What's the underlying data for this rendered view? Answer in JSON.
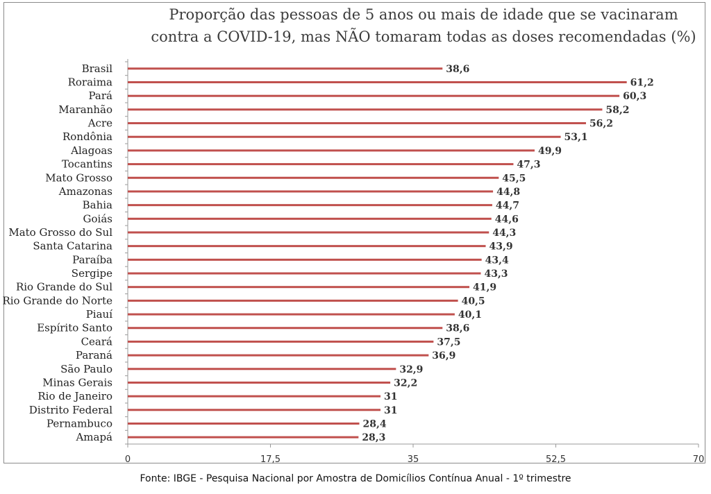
{
  "chart_data": {
    "type": "bar",
    "orientation": "horizontal",
    "title_lines": [
      "Proporção das pessoas de 5 anos ou mais de idade que se vacinaram",
      "contra a COVID-19, mas NÃO tomaram todas as doses recomendadas (%)"
    ],
    "categories": [
      "Brasil",
      "Roraima",
      "Pará",
      "Maranhão",
      "Acre",
      "Rondônia",
      "Alagoas",
      "Tocantins",
      "Mato Grosso",
      "Amazonas",
      "Bahia",
      "Goiás",
      "Mato Grosso do Sul",
      "Santa Catarina",
      "Paraíba",
      "Sergipe",
      "Rio Grande do Sul",
      "Rio Grande do Norte",
      "Piauí",
      "Espírito Santo",
      "Ceará",
      "Paraná",
      "São Paulo",
      "Minas Gerais",
      "Rio de Janeiro",
      "Distrito Federal",
      "Pernambuco",
      "Amapá"
    ],
    "values": [
      38.6,
      61.2,
      60.3,
      58.2,
      56.2,
      53.1,
      49.9,
      47.3,
      45.5,
      44.8,
      44.7,
      44.6,
      44.3,
      43.9,
      43.4,
      43.3,
      41.9,
      40.5,
      40.1,
      38.6,
      37.5,
      36.9,
      32.9,
      32.2,
      31,
      31,
      28.4,
      28.3
    ],
    "value_labels": [
      "38,6",
      "61,2",
      "60,3",
      "58,2",
      "56,2",
      "53,1",
      "49,9",
      "47,3",
      "45,5",
      "44,8",
      "44,7",
      "44,6",
      "44,3",
      "43,9",
      "43,4",
      "43,3",
      "41,9",
      "40,5",
      "40,1",
      "38,6",
      "37,5",
      "36,9",
      "32,9",
      "32,2",
      "31",
      "31",
      "28,4",
      "28,3"
    ],
    "xlim": [
      0,
      70
    ],
    "xticks": [
      0,
      17.5,
      35,
      52.5,
      70
    ],
    "xtick_labels": [
      "0",
      "17,5",
      "35",
      "52,5",
      "70"
    ],
    "xlabel": "",
    "ylabel": "",
    "bar_color": "#c0504d",
    "grid": false,
    "legend": "none"
  },
  "source": "Fonte: IBGE - Pesquisa Nacional por Amostra de Domicílios Contínua Anual - 1º trimestre"
}
